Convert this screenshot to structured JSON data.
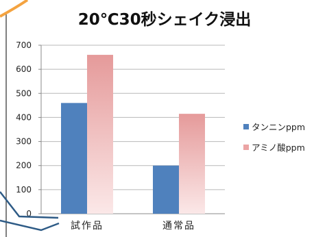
{
  "chart_data": {
    "type": "bar",
    "title": "20℃30秒シェイク浸出",
    "categories": [
      "試作品",
      "通常品"
    ],
    "series": [
      {
        "name": "タンニンppm",
        "values": [
          460,
          200
        ]
      },
      {
        "name": "アミノ酸ppm",
        "values": [
          660,
          415
        ]
      }
    ],
    "ylim": [
      0,
      700
    ],
    "yticks": [
      0,
      100,
      200,
      300,
      400,
      500,
      600,
      700
    ],
    "xlabel": "",
    "ylabel": "",
    "grid": true,
    "legend": "right",
    "colors": {
      "series_0": "#4f81bd",
      "series_1_top": "#e59a9a",
      "series_1_bottom": "#fbe8e8",
      "grid": "#b8b8b8",
      "accent_stroke": "#f4a340",
      "callout": "#2e5b86"
    }
  }
}
